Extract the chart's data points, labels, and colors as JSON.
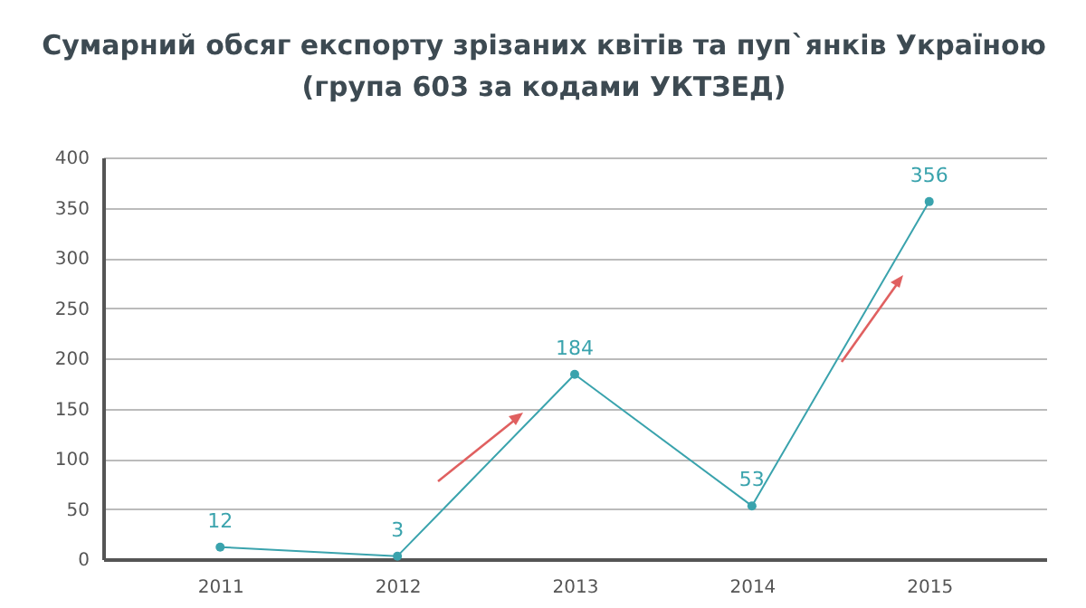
{
  "chart_data": {
    "type": "line",
    "title": "Сумарний обсяг експорту зрізаних квітів та пуп`янків Україною\n(група 603 за кодами УКТЗЕД)",
    "categories": [
      "2011",
      "2012",
      "2013",
      "2014",
      "2015"
    ],
    "series": [
      {
        "color": "#3aa3ad",
        "values": [
          12,
          3,
          184,
          53,
          356
        ]
      }
    ],
    "ylim": [
      0,
      400
    ],
    "yticks": [
      0,
      50,
      100,
      150,
      200,
      250,
      300,
      350,
      400
    ],
    "grid": "y",
    "marker": "circle",
    "data_labels": true,
    "legend": false
  }
}
